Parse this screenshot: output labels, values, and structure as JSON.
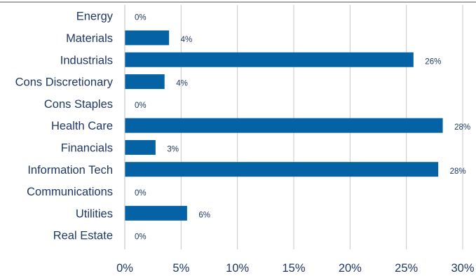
{
  "chart_data": {
    "type": "bar",
    "orientation": "horizontal",
    "categories": [
      "Energy",
      "Materials",
      "Industrials",
      "Cons Discretionary",
      "Cons Staples",
      "Health Care",
      "Financials",
      "Information Tech",
      "Communications",
      "Utilities",
      "Real Estate"
    ],
    "values": [
      0,
      3.9,
      25.6,
      3.5,
      0,
      28.2,
      2.7,
      27.8,
      0,
      5.5,
      0
    ],
    "data_labels": [
      "0%",
      "4%",
      "26%",
      "4%",
      "0%",
      "28%",
      "3%",
      "28%",
      "0%",
      "6%",
      "0%"
    ],
    "x_ticks": [
      "0%",
      "5%",
      "10%",
      "15%",
      "20%",
      "25%",
      "30%"
    ],
    "xlim": [
      0,
      30
    ],
    "grid": true,
    "legend": "none",
    "bar_color": "#0563a5"
  }
}
